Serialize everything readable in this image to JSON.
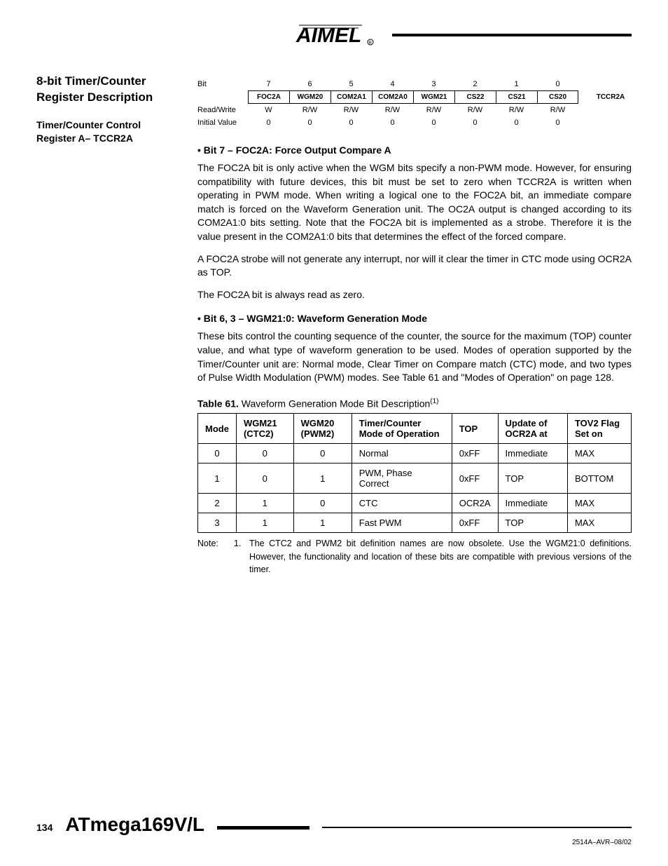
{
  "header": {
    "logo_text": "AIMEL"
  },
  "sidebar": {
    "section_title": "8-bit Timer/Counter Register Description",
    "subsection_title": "Timer/Counter Control Register A– TCCR2A"
  },
  "register_table": {
    "row_labels": [
      "Bit",
      "",
      "Read/Write",
      "Initial Value"
    ],
    "bit_numbers": [
      "7",
      "6",
      "5",
      "4",
      "3",
      "2",
      "1",
      "0"
    ],
    "bit_names": [
      "FOC2A",
      "WGM20",
      "COM2A1",
      "COM2A0",
      "WGM21",
      "CS22",
      "CS21",
      "CS20"
    ],
    "read_write": [
      "W",
      "R/W",
      "R/W",
      "R/W",
      "R/W",
      "R/W",
      "R/W",
      "R/W"
    ],
    "initial": [
      "0",
      "0",
      "0",
      "0",
      "0",
      "0",
      "0",
      "0"
    ],
    "register_name": "TCCR2A"
  },
  "sections": [
    {
      "heading": "Bit 7 – FOC2A: Force Output Compare A",
      "paragraphs": [
        "The FOC2A bit is only active when the WGM bits specify a non-PWM mode. However, for ensuring compatibility with future devices, this bit must be set to zero when TCCR2A is written when operating in PWM mode. When writing a logical one to the FOC2A bit, an immediate compare match is forced on the Waveform Generation unit. The OC2A output is changed according to its COM2A1:0 bits setting. Note that the FOC2A bit is implemented as a strobe. Therefore it is the value present in the COM2A1:0 bits that determines the effect of the forced compare.",
        "A FOC2A strobe will not generate any interrupt, nor will it clear the timer in CTC mode using OCR2A as TOP.",
        "The FOC2A bit is always read as zero."
      ]
    },
    {
      "heading": "Bit 6, 3 – WGM21:0: Waveform Generation Mode",
      "paragraphs": [
        "These bits control the counting sequence of the counter, the source for the maximum (TOP) counter value, and what type of waveform generation to be used. Modes of operation supported by the Timer/Counter unit are: Normal mode, Clear Timer on Compare match (CTC) mode, and two types of Pulse Width Modulation (PWM) modes. See Table 61 and \"Modes of Operation\" on page 128."
      ]
    }
  ],
  "wgm_table": {
    "caption_bold": "Table 61.",
    "caption_rest": "Waveform Generation Mode Bit Description",
    "caption_sup": "(1)",
    "headers": [
      "Mode",
      "WGM21 (CTC2)",
      "WGM20 (PWM2)",
      "Timer/Counter Mode of Operation",
      "TOP",
      "Update of OCR2A at",
      "TOV2 Flag Set on"
    ],
    "rows": [
      [
        "0",
        "0",
        "0",
        "Normal",
        "0xFF",
        "Immediate",
        "MAX"
      ],
      [
        "1",
        "0",
        "1",
        "PWM, Phase Correct",
        "0xFF",
        "TOP",
        "BOTTOM"
      ],
      [
        "2",
        "1",
        "0",
        "CTC",
        "OCR2A",
        "Immediate",
        "MAX"
      ],
      [
        "3",
        "1",
        "1",
        "Fast PWM",
        "0xFF",
        "TOP",
        "MAX"
      ]
    ]
  },
  "note": {
    "label": "Note:",
    "num": "1.",
    "text": "The CTC2 and PWM2 bit definition names are now obsolete. Use the WGM21:0 definitions. However, the functionality and location of these bits are compatible with previous versions of the timer."
  },
  "footer": {
    "page_num": "134",
    "chip_name": "ATmega169V/L",
    "doc_code": "2514A–AVR–08/02"
  }
}
